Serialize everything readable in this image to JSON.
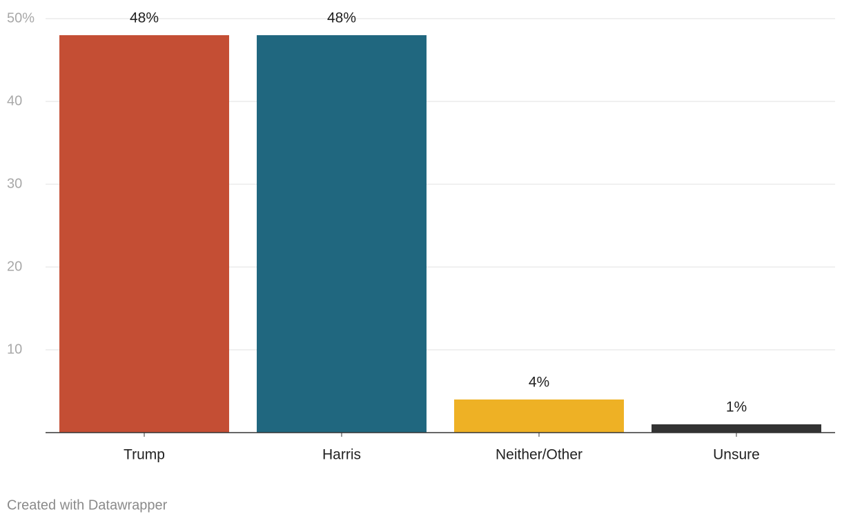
{
  "chart_data": {
    "type": "bar",
    "categories": [
      "Trump",
      "Harris",
      "Neither/Other",
      "Unsure"
    ],
    "values": [
      48,
      48,
      4,
      1
    ],
    "value_labels": [
      "48%",
      "48%",
      "4%",
      "1%"
    ],
    "colors": [
      "#c44e34",
      "#20677f",
      "#eeb125",
      "#333333"
    ],
    "ylim": [
      0,
      50
    ],
    "yticks": [
      10,
      20,
      30,
      40,
      {
        "value": 50,
        "label": "50%"
      }
    ],
    "grid": true,
    "footer": "Created with Datawrapper"
  }
}
